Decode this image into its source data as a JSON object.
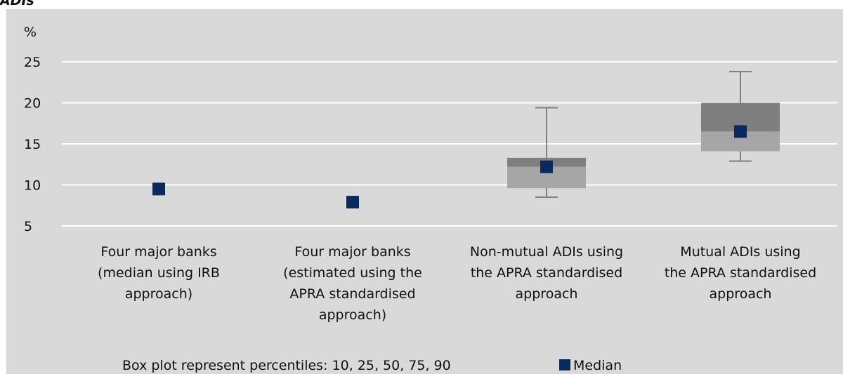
{
  "header": {
    "title_fragment": "ADIs"
  },
  "colors": {
    "background": "#d9d9d9",
    "grid": "#ffffff",
    "box_upper": "#7f7f7f",
    "box_lower": "#a6a6a6",
    "whisker": "#808080",
    "median": "#0a2a5e"
  },
  "chart_data": {
    "type": "boxplot",
    "ylabel": "%",
    "ylim": [
      5,
      25
    ],
    "yticks": [
      "5",
      "10",
      "15",
      "20",
      "25"
    ],
    "grid": true,
    "categories": [
      {
        "lines": [
          "Four major banks",
          "(median using IRB",
          "approach)"
        ]
      },
      {
        "lines": [
          "Four major banks",
          "(estimated using the",
          "APRA standardised",
          "approach)"
        ]
      },
      {
        "lines": [
          "Non-mutual ADIs using",
          "the APRA standardised",
          "approach"
        ]
      },
      {
        "lines": [
          "Mutual ADIs using",
          "the APRA standardised",
          "approach"
        ]
      }
    ],
    "series": [
      {
        "p10": null,
        "p25": null,
        "p50": 9.5,
        "p75": null,
        "p90": null
      },
      {
        "p10": null,
        "p25": null,
        "p50": 7.9,
        "p75": null,
        "p90": null
      },
      {
        "p10": 8.5,
        "p25": 9.6,
        "p50": 12.2,
        "p75": 13.3,
        "p90": 19.4
      },
      {
        "p10": 12.9,
        "p25": 14.1,
        "p50": 16.5,
        "p75": 20.0,
        "p90": 23.8
      }
    ],
    "legend": {
      "note": "Box plot represent percentiles: 10, 25, 50, 75, 90",
      "median_label": "Median",
      "placement": "bottom"
    }
  }
}
